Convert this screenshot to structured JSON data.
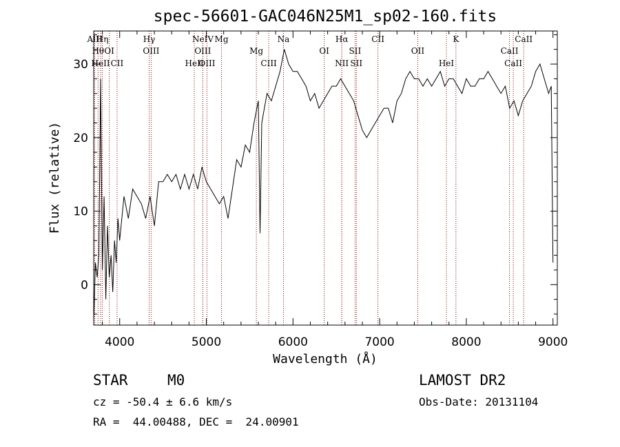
{
  "chart_data": {
    "type": "line",
    "title": "spec-56601-GAC046N25M1_sp02-160.fits",
    "xlabel": "Wavelength (Å)",
    "ylabel": "Flux (relative)",
    "xlim": [
      3700,
      9050
    ],
    "ylim": [
      -5.5,
      34.5
    ],
    "xticks": [
      4000,
      5000,
      6000,
      7000,
      8000,
      9000
    ],
    "yticks": [
      0,
      10,
      20,
      30
    ],
    "grid": false,
    "line_color": "#000000",
    "marker_color": "#8b0000",
    "spectrum": {
      "x": [
        3700,
        3720,
        3740,
        3760,
        3780,
        3800,
        3820,
        3840,
        3860,
        3880,
        3900,
        3920,
        3940,
        3960,
        3980,
        4000,
        4050,
        4100,
        4150,
        4200,
        4250,
        4300,
        4350,
        4400,
        4450,
        4500,
        4550,
        4600,
        4650,
        4700,
        4750,
        4800,
        4850,
        4900,
        4950,
        5000,
        5050,
        5100,
        5150,
        5200,
        5250,
        5300,
        5350,
        5400,
        5450,
        5500,
        5550,
        5600,
        5620,
        5640,
        5700,
        5750,
        5800,
        5850,
        5900,
        5950,
        6000,
        6050,
        6100,
        6150,
        6200,
        6250,
        6300,
        6350,
        6400,
        6450,
        6500,
        6550,
        6600,
        6650,
        6700,
        6750,
        6800,
        6850,
        6900,
        6950,
        7000,
        7050,
        7100,
        7150,
        7200,
        7250,
        7300,
        7350,
        7400,
        7450,
        7500,
        7550,
        7600,
        7650,
        7700,
        7750,
        7800,
        7850,
        7900,
        7950,
        8000,
        8050,
        8100,
        8150,
        8200,
        8250,
        8300,
        8350,
        8400,
        8450,
        8500,
        8550,
        8600,
        8650,
        8700,
        8750,
        8800,
        8850,
        8900,
        8950,
        8980,
        9000
      ],
      "y": [
        -5,
        3,
        1,
        4,
        28,
        2,
        12,
        -2,
        8,
        1,
        4,
        -1,
        6,
        3,
        9,
        6,
        12,
        9,
        13,
        12,
        11,
        9,
        12,
        8,
        14,
        14,
        15,
        14,
        15,
        13,
        15,
        13,
        15,
        13,
        16,
        14,
        13,
        12,
        11,
        12,
        9,
        13,
        17,
        16,
        19,
        18,
        22,
        25,
        7,
        22,
        26,
        25,
        27,
        29,
        32,
        30,
        29,
        29,
        28,
        27,
        25,
        26,
        24,
        25,
        26,
        27,
        27,
        28,
        27,
        26,
        25,
        23,
        21,
        20,
        21,
        22,
        23,
        24,
        24,
        22,
        25,
        26,
        28,
        29,
        28,
        28,
        27,
        28,
        27,
        28,
        29,
        27,
        28,
        28,
        27,
        26,
        28,
        27,
        27,
        28,
        28,
        29,
        28,
        27,
        26,
        27,
        24,
        25,
        23,
        25,
        26,
        27,
        29,
        30,
        28,
        26,
        27,
        3
      ]
    },
    "line_markers": [
      {
        "wavelength": 3712,
        "label": "AlII"
      },
      {
        "wavelength": 3750,
        "label": "Hθ"
      },
      {
        "wavelength": 3780,
        "label": "HeII"
      },
      {
        "wavelength": 3800,
        "label": "Hη"
      },
      {
        "wavelength": 3880,
        "label": "OI"
      },
      {
        "wavelength": 3970,
        "label": "CII"
      },
      {
        "wavelength": 4340,
        "label": "Hγ"
      },
      {
        "wavelength": 4363,
        "label": "OIII"
      },
      {
        "wavelength": 4861,
        "label": "HeII"
      },
      {
        "wavelength": 4960,
        "label": "NeIV"
      },
      {
        "wavelength": 4959,
        "label": "OIII"
      },
      {
        "wavelength": 5007,
        "label": "OIII"
      },
      {
        "wavelength": 5175,
        "label": "Mg"
      },
      {
        "wavelength": 5577,
        "label": "Mg"
      },
      {
        "wavelength": 5720,
        "label": "CIII"
      },
      {
        "wavelength": 5890,
        "label": "Na"
      },
      {
        "wavelength": 6360,
        "label": "OI"
      },
      {
        "wavelength": 6563,
        "label": "NII"
      },
      {
        "wavelength": 6563,
        "label": "Hα"
      },
      {
        "wavelength": 6716,
        "label": "SII"
      },
      {
        "wavelength": 6731,
        "label": "SII"
      },
      {
        "wavelength": 6980,
        "label": "CII"
      },
      {
        "wavelength": 7440,
        "label": "OII"
      },
      {
        "wavelength": 7770,
        "label": "HeI"
      },
      {
        "wavelength": 7880,
        "label": "K"
      },
      {
        "wavelength": 8498,
        "label": "CaII"
      },
      {
        "wavelength": 8542,
        "label": "CaII"
      },
      {
        "wavelength": 8662,
        "label": "CaII"
      }
    ]
  },
  "info": {
    "class": "STAR",
    "subclass": "M0",
    "survey": "LAMOST DR2",
    "cz": "cz = -50.4 ± 6.6 km/s",
    "obs_date": "Obs-Date: 20131104",
    "radec": "RA =  44.00488, DEC =  24.00901"
  }
}
